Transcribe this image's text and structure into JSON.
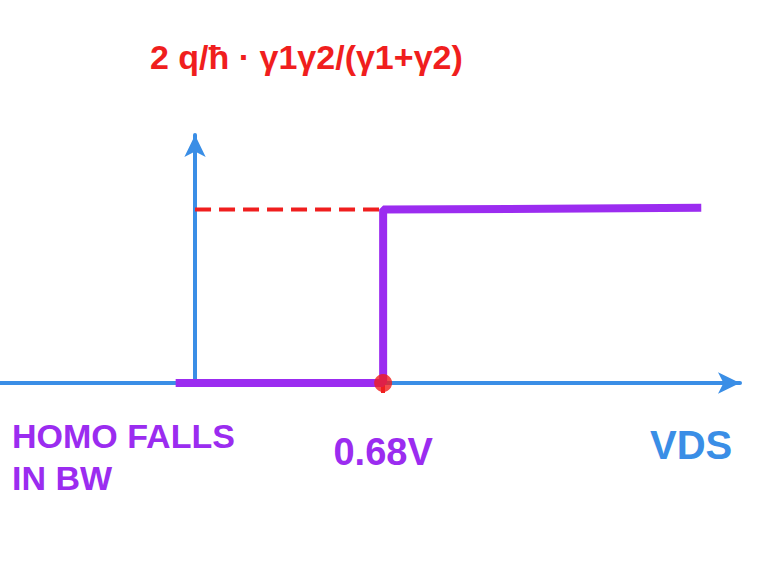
{
  "chart_data": {
    "type": "line",
    "xlabel": "VDS",
    "annotations": [
      {
        "text": "2 q/ħ · γ1γ2/(γ1+γ2)",
        "color": "#f01e1e"
      },
      {
        "text": "HOMO FALLS IN BW",
        "color": "#9b2cf0"
      }
    ],
    "xlim": [
      -0.705,
      1.97
    ],
    "xticks": [
      {
        "value": 0.68,
        "label": "0.68V"
      }
    ],
    "ylim": [
      0,
      1.43
    ],
    "yticks": [],
    "tick_labels": "x",
    "grid": false,
    "series": [
      {
        "type": "line",
        "color": "#f01e1e",
        "line_style": "dashed",
        "x": [
          0,
          0.68
        ],
        "values": [
          1,
          1
        ]
      },
      {
        "type": "line",
        "color": "#9b2cf0",
        "line_style": "solid",
        "x": [
          -0.07,
          0.68,
          0.68,
          1.83
        ],
        "values": [
          0,
          0,
          1,
          1.01
        ]
      },
      {
        "type": "scatter",
        "color": "#f01e1e",
        "marker": "circle",
        "x": [
          0.68
        ],
        "values": [
          0
        ]
      }
    ]
  }
}
